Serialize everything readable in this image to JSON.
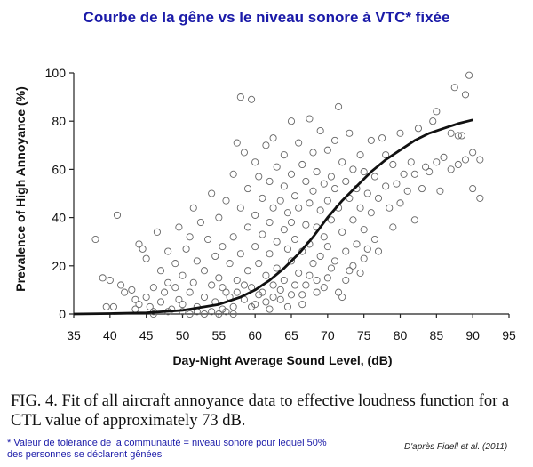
{
  "header": {
    "title": "Courbe de la gêne vs le niveau sonore à VTC* fixée"
  },
  "caption": {
    "line1": "FIG. 4.  Fit of all aircraft annoyance data to effective loudness function for a",
    "line2": "CTL value of approximately 73 dB."
  },
  "footnote": {
    "line1": "* Valeur de tolérance de la communauté = niveau sonore pour lequel 50%",
    "line2": "des personnes se déclarent gênées"
  },
  "source": "D'après Fidell et al. (2011)",
  "colors": {
    "title": "#1a1aa8",
    "points": "#666666",
    "curve": "#111111"
  },
  "chart_data": {
    "type": "scatter",
    "title": "",
    "xlabel": "Day-Night Average Sound Level, (dB)",
    "ylabel": "Prevalence of High Annoyance (%)",
    "xlim": [
      35,
      95
    ],
    "ylim": [
      0,
      100
    ],
    "xticks": [
      35,
      40,
      45,
      50,
      55,
      60,
      65,
      70,
      75,
      80,
      85,
      90,
      95
    ],
    "yticks": [
      0,
      20,
      40,
      60,
      80,
      100
    ],
    "grid": false,
    "series": [
      {
        "marker": "open-circle",
        "points": [
          [
            38,
            31
          ],
          [
            39,
            15
          ],
          [
            39.5,
            3
          ],
          [
            40,
            14
          ],
          [
            40.5,
            3
          ],
          [
            41,
            41
          ],
          [
            41.5,
            12
          ],
          [
            42,
            9
          ],
          [
            43,
            10
          ],
          [
            43.5,
            2
          ],
          [
            44,
            29
          ],
          [
            44.5,
            27
          ],
          [
            45,
            23
          ],
          [
            45,
            7
          ],
          [
            45.5,
            3
          ],
          [
            46,
            11
          ],
          [
            46,
            1
          ],
          [
            46.5,
            34
          ],
          [
            47,
            18
          ],
          [
            47,
            5
          ],
          [
            47.5,
            9
          ],
          [
            48,
            26
          ],
          [
            48,
            13
          ],
          [
            48.5,
            2
          ],
          [
            49,
            21
          ],
          [
            49,
            11
          ],
          [
            49.5,
            36
          ],
          [
            49.5,
            6
          ],
          [
            50,
            16
          ],
          [
            50,
            4
          ],
          [
            50.5,
            27
          ],
          [
            51,
            9
          ],
          [
            51,
            32
          ],
          [
            51.5,
            44
          ],
          [
            51.5,
            13
          ],
          [
            52,
            22
          ],
          [
            52,
            3
          ],
          [
            52.5,
            38
          ],
          [
            53,
            18
          ],
          [
            53,
            7
          ],
          [
            53.5,
            31
          ],
          [
            54,
            50
          ],
          [
            54,
            12
          ],
          [
            54.5,
            24
          ],
          [
            54.5,
            5
          ],
          [
            55,
            40
          ],
          [
            55,
            15
          ],
          [
            55.5,
            28
          ],
          [
            55.5,
            2
          ],
          [
            56,
            47
          ],
          [
            56,
            9
          ],
          [
            56.5,
            21
          ],
          [
            57,
            58
          ],
          [
            57,
            32
          ],
          [
            57,
            3
          ],
          [
            57.5,
            71
          ],
          [
            57.5,
            14
          ],
          [
            58,
            90
          ],
          [
            58,
            44
          ],
          [
            58,
            25
          ],
          [
            58.5,
            67
          ],
          [
            58.5,
            6
          ],
          [
            59,
            52
          ],
          [
            59,
            36
          ],
          [
            59,
            18
          ],
          [
            59.5,
            89
          ],
          [
            59.5,
            11
          ],
          [
            60,
            63
          ],
          [
            60,
            41
          ],
          [
            60,
            28
          ],
          [
            60,
            4
          ],
          [
            60.5,
            57
          ],
          [
            60.5,
            21
          ],
          [
            61,
            48
          ],
          [
            61,
            33
          ],
          [
            61,
            9
          ],
          [
            61.5,
            70
          ],
          [
            61.5,
            16
          ],
          [
            62,
            55
          ],
          [
            62,
            38
          ],
          [
            62,
            25
          ],
          [
            62,
            2
          ],
          [
            62.5,
            73
          ],
          [
            62.5,
            44
          ],
          [
            62.5,
            12
          ],
          [
            63,
            61
          ],
          [
            63,
            30
          ],
          [
            63,
            19
          ],
          [
            63.5,
            47
          ],
          [
            63.5,
            6
          ],
          [
            64,
            66
          ],
          [
            64,
            53
          ],
          [
            64,
            35
          ],
          [
            64,
            14
          ],
          [
            64.5,
            42
          ],
          [
            64.5,
            27
          ],
          [
            65,
            80
          ],
          [
            65,
            58
          ],
          [
            65,
            38
          ],
          [
            65,
            22
          ],
          [
            65,
            8
          ],
          [
            65.5,
            49
          ],
          [
            65.5,
            31
          ],
          [
            66,
            71
          ],
          [
            66,
            44
          ],
          [
            66,
            17
          ],
          [
            66.5,
            62
          ],
          [
            66.5,
            26
          ],
          [
            66.5,
            4
          ],
          [
            67,
            55
          ],
          [
            67,
            37
          ],
          [
            67,
            12
          ],
          [
            67.5,
            81
          ],
          [
            67.5,
            46
          ],
          [
            67.5,
            29
          ],
          [
            68,
            67
          ],
          [
            68,
            51
          ],
          [
            68,
            21
          ],
          [
            68.5,
            59
          ],
          [
            68.5,
            36
          ],
          [
            68.5,
            9
          ],
          [
            69,
            76
          ],
          [
            69,
            43
          ],
          [
            69,
            24
          ],
          [
            69.5,
            54
          ],
          [
            69.5,
            32
          ],
          [
            70,
            68
          ],
          [
            70,
            47
          ],
          [
            70,
            28
          ],
          [
            70,
            15
          ],
          [
            70.5,
            57
          ],
          [
            70.5,
            39
          ],
          [
            71,
            72
          ],
          [
            71,
            52
          ],
          [
            71,
            22
          ],
          [
            71.5,
            86
          ],
          [
            71.5,
            44
          ],
          [
            72,
            63
          ],
          [
            72,
            34
          ],
          [
            72,
            7
          ],
          [
            72.5,
            55
          ],
          [
            72.5,
            26
          ],
          [
            73,
            75
          ],
          [
            73,
            48
          ],
          [
            73,
            18
          ],
          [
            73.5,
            60
          ],
          [
            73.5,
            39
          ],
          [
            74,
            52
          ],
          [
            74,
            29
          ],
          [
            74.5,
            66
          ],
          [
            74.5,
            44
          ],
          [
            75,
            59
          ],
          [
            75,
            35
          ],
          [
            75,
            23
          ],
          [
            75.5,
            50
          ],
          [
            76,
            72
          ],
          [
            76,
            42
          ],
          [
            76.5,
            57
          ],
          [
            76.5,
            31
          ],
          [
            77,
            48
          ],
          [
            77,
            26
          ],
          [
            77.5,
            73
          ],
          [
            78,
            66
          ],
          [
            78,
            53
          ],
          [
            78.5,
            44
          ],
          [
            79,
            62
          ],
          [
            79,
            36
          ],
          [
            79.5,
            54
          ],
          [
            80,
            75
          ],
          [
            80,
            46
          ],
          [
            80.5,
            58
          ],
          [
            81,
            51
          ],
          [
            81.5,
            63
          ],
          [
            82,
            39
          ],
          [
            82,
            58
          ],
          [
            82.5,
            77
          ],
          [
            83,
            52
          ],
          [
            83.5,
            61
          ],
          [
            84,
            59
          ],
          [
            84.5,
            80
          ],
          [
            85,
            84
          ],
          [
            85,
            63
          ],
          [
            85.5,
            51
          ],
          [
            86,
            65
          ],
          [
            87,
            75
          ],
          [
            87,
            60
          ],
          [
            87.5,
            94
          ],
          [
            88,
            74
          ],
          [
            88,
            62
          ],
          [
            88.5,
            74
          ],
          [
            89,
            91
          ],
          [
            89,
            64
          ],
          [
            89.5,
            99
          ],
          [
            90,
            67
          ],
          [
            90,
            52
          ],
          [
            91,
            64
          ],
          [
            91,
            48
          ],
          [
            43.5,
            6
          ],
          [
            44,
            4
          ],
          [
            46,
            0
          ],
          [
            48,
            1
          ],
          [
            50,
            1
          ],
          [
            51,
            0
          ],
          [
            52,
            1
          ],
          [
            53,
            0
          ],
          [
            54,
            1
          ],
          [
            55,
            0
          ],
          [
            56,
            1
          ],
          [
            57,
            0
          ],
          [
            55.5,
            11
          ],
          [
            56.5,
            7
          ],
          [
            57.5,
            9
          ],
          [
            58.5,
            12
          ],
          [
            59.5,
            3
          ],
          [
            60.5,
            8
          ],
          [
            61.5,
            5
          ],
          [
            62.5,
            7
          ],
          [
            63.5,
            10
          ],
          [
            64.5,
            3
          ],
          [
            65.5,
            12
          ],
          [
            66.5,
            8
          ],
          [
            67.5,
            16
          ],
          [
            68.5,
            14
          ],
          [
            69.5,
            11
          ],
          [
            70.5,
            19
          ],
          [
            71.5,
            9
          ],
          [
            72.5,
            14
          ],
          [
            73.5,
            20
          ],
          [
            74.5,
            17
          ],
          [
            75.5,
            27
          ]
        ]
      },
      {
        "marker": "line",
        "points": [
          [
            35,
            0
          ],
          [
            40,
            0.2
          ],
          [
            45,
            0.5
          ],
          [
            50,
            1.5
          ],
          [
            55,
            4
          ],
          [
            58,
            7
          ],
          [
            60,
            10
          ],
          [
            62,
            14
          ],
          [
            64,
            19
          ],
          [
            66,
            25
          ],
          [
            68,
            32
          ],
          [
            70,
            40
          ],
          [
            72,
            47
          ],
          [
            73,
            50
          ],
          [
            74,
            53
          ],
          [
            76,
            59
          ],
          [
            78,
            64
          ],
          [
            80,
            68
          ],
          [
            82,
            72
          ],
          [
            84,
            75
          ],
          [
            86,
            77
          ],
          [
            88,
            79
          ],
          [
            90,
            80.5
          ]
        ]
      }
    ]
  }
}
